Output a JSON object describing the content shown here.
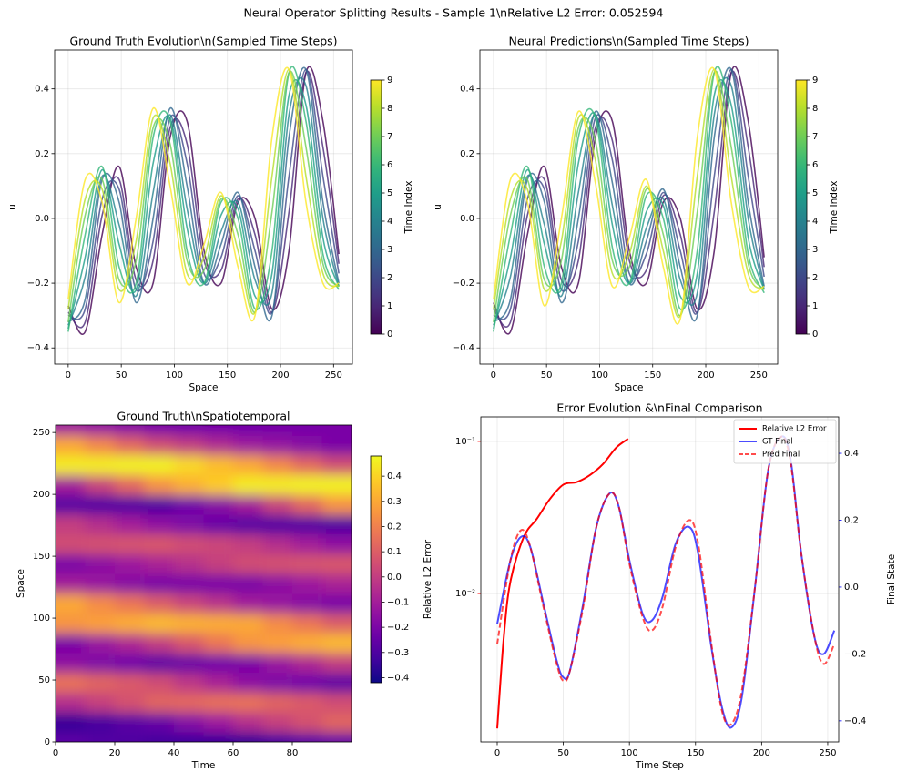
{
  "title": "Neural Operator Splitting Results - Sample 1\\nRelative L2 Error: 0.052594",
  "chart_data": [
    {
      "type": "line",
      "title": "Ground Truth Evolution\\n(Sampled Time Steps)",
      "xlabel": "Space",
      "ylabel": "u",
      "x": [
        0,
        16,
        32,
        48,
        64,
        80,
        96,
        112,
        128,
        144,
        160,
        176,
        192,
        208,
        224,
        240,
        255
      ],
      "xlim": [
        -12.75,
        267.75
      ],
      "xticks": [
        0,
        50,
        100,
        150,
        200,
        250
      ],
      "ylim": [
        -0.45,
        0.52
      ],
      "yticks": [
        {
          "value": -0.4,
          "label": "−0.4"
        },
        {
          "value": -0.2,
          "label": "−0.2"
        },
        {
          "value": 0,
          "label": "0.0"
        },
        0.2,
        0.4
      ],
      "grid": true,
      "colormap": "viridis",
      "clim": [
        0,
        9
      ],
      "cticks": [
        0,
        1,
        2,
        3,
        4,
        5,
        6,
        7,
        8,
        9
      ],
      "clabel": "Time Index",
      "series": [
        {
          "color": "#440154",
          "values": [
            -0.27,
            -0.35,
            -0.05,
            0.16,
            -0.15,
            -0.2,
            0.25,
            0.3,
            -0.1,
            -0.2,
            0.05,
            0.0,
            -0.28,
            -0.1,
            0.45,
            0.3,
            -0.11
          ]
        },
        {
          "color": "#482878",
          "values": [
            -0.29,
            -0.32,
            0.01,
            0.12,
            -0.19,
            -0.13,
            0.28,
            0.23,
            -0.13,
            -0.16,
            0.06,
            -0.05,
            -0.29,
            0.02,
            0.45,
            0.22,
            -0.14
          ]
        },
        {
          "color": "#3e4989",
          "values": [
            -0.3,
            -0.28,
            0.06,
            0.09,
            -0.22,
            -0.07,
            0.31,
            0.17,
            -0.17,
            -0.12,
            0.07,
            -0.1,
            -0.29,
            0.13,
            0.46,
            0.13,
            -0.17
          ]
        },
        {
          "color": "#31688e",
          "values": [
            -0.32,
            -0.25,
            0.12,
            0.05,
            -0.26,
            0.0,
            0.34,
            0.1,
            -0.2,
            -0.08,
            0.08,
            -0.15,
            -0.3,
            0.25,
            0.46,
            0.05,
            -0.2
          ]
        },
        {
          "color": "#26828e",
          "values": [
            -0.33,
            -0.18,
            0.13,
            -0.02,
            -0.24,
            0.08,
            0.32,
            0.03,
            -0.2,
            -0.04,
            0.05,
            -0.19,
            -0.23,
            0.32,
            0.41,
            0.0,
            -0.21
          ]
        },
        {
          "color": "#1f9e89",
          "values": [
            -0.34,
            -0.12,
            0.15,
            -0.08,
            -0.22,
            0.17,
            0.31,
            -0.03,
            -0.2,
            0.01,
            0.03,
            -0.24,
            -0.17,
            0.38,
            0.35,
            -0.06,
            -0.21
          ]
        },
        {
          "color": "#35b779",
          "values": [
            -0.35,
            -0.05,
            0.16,
            -0.15,
            -0.2,
            0.25,
            0.3,
            -0.1,
            -0.2,
            0.05,
            0.0,
            -0.28,
            -0.1,
            0.45,
            0.3,
            -0.11,
            -0.22
          ]
        },
        {
          "color": "#6ece58",
          "values": [
            -0.32,
            0.01,
            0.12,
            -0.19,
            -0.13,
            0.28,
            0.23,
            -0.13,
            -0.16,
            0.06,
            -0.05,
            -0.29,
            0.02,
            0.45,
            0.22,
            -0.14,
            -0.21
          ]
        },
        {
          "color": "#b5de2b",
          "values": [
            -0.28,
            0.06,
            0.09,
            -0.22,
            -0.07,
            0.31,
            0.17,
            -0.17,
            -0.12,
            0.07,
            -0.1,
            -0.29,
            0.13,
            0.46,
            0.13,
            -0.17,
            -0.21
          ]
        },
        {
          "color": "#fde725",
          "values": [
            -0.25,
            0.12,
            0.05,
            -0.26,
            0.0,
            0.34,
            0.1,
            -0.2,
            -0.08,
            0.08,
            -0.15,
            -0.3,
            0.25,
            0.46,
            0.05,
            -0.2,
            -0.2
          ]
        }
      ]
    },
    {
      "type": "line",
      "title": "Neural Predictions\\n(Sampled Time Steps)",
      "xlabel": "Space",
      "ylabel": "u",
      "x": [
        0,
        16,
        32,
        48,
        64,
        80,
        96,
        112,
        128,
        144,
        160,
        176,
        192,
        208,
        224,
        240,
        255
      ],
      "xlim": [
        -12.75,
        267.75
      ],
      "xticks": [
        0,
        50,
        100,
        150,
        200,
        250
      ],
      "ylim": [
        -0.45,
        0.52
      ],
      "yticks": [
        {
          "value": -0.4,
          "label": "−0.4"
        },
        {
          "value": -0.2,
          "label": "−0.2"
        },
        {
          "value": 0,
          "label": "0.0"
        },
        0.2,
        0.4
      ],
      "grid": true,
      "colormap": "viridis",
      "clim": [
        0,
        9
      ],
      "cticks": [
        0,
        1,
        2,
        3,
        4,
        5,
        6,
        7,
        8,
        9
      ],
      "clabel": "Time Index",
      "series": [
        {
          "color": "#440154",
          "values": [
            -0.26,
            -0.35,
            -0.05,
            0.16,
            -0.15,
            -0.2,
            0.25,
            0.3,
            -0.1,
            -0.2,
            0.05,
            0.0,
            -0.28,
            -0.1,
            0.45,
            0.3,
            -0.12
          ]
        },
        {
          "color": "#482878",
          "values": [
            -0.28,
            -0.32,
            0.01,
            0.12,
            -0.19,
            -0.13,
            0.28,
            0.24,
            -0.13,
            -0.16,
            0.07,
            -0.05,
            -0.29,
            0.02,
            0.45,
            0.22,
            -0.15
          ]
        },
        {
          "color": "#3e4989",
          "values": [
            -0.3,
            -0.28,
            0.06,
            0.09,
            -0.22,
            -0.07,
            0.31,
            0.18,
            -0.17,
            -0.11,
            0.08,
            -0.1,
            -0.29,
            0.13,
            0.46,
            0.13,
            -0.18
          ]
        },
        {
          "color": "#31688e",
          "values": [
            -0.32,
            -0.25,
            0.12,
            0.05,
            -0.26,
            0.0,
            0.33,
            0.11,
            -0.2,
            -0.07,
            0.09,
            -0.15,
            -0.3,
            0.25,
            0.46,
            0.05,
            -0.21
          ]
        },
        {
          "color": "#26828e",
          "values": [
            -0.33,
            -0.18,
            0.13,
            -0.02,
            -0.24,
            0.08,
            0.32,
            0.04,
            -0.2,
            -0.03,
            0.06,
            -0.19,
            -0.23,
            0.32,
            0.41,
            0.0,
            -0.22
          ]
        },
        {
          "color": "#1f9e89",
          "values": [
            -0.34,
            -0.12,
            0.15,
            -0.08,
            -0.22,
            0.17,
            0.32,
            -0.02,
            -0.2,
            0.02,
            0.04,
            -0.24,
            -0.17,
            0.38,
            0.35,
            -0.06,
            -0.22
          ]
        },
        {
          "color": "#35b779",
          "values": [
            -0.35,
            -0.05,
            0.16,
            -0.15,
            -0.2,
            0.25,
            0.31,
            -0.09,
            -0.2,
            0.07,
            0.0,
            -0.28,
            -0.1,
            0.45,
            0.3,
            -0.11,
            -0.23
          ]
        },
        {
          "color": "#6ece58",
          "values": [
            -0.32,
            0.01,
            0.12,
            -0.19,
            -0.13,
            0.28,
            0.24,
            -0.13,
            -0.15,
            0.09,
            -0.05,
            -0.3,
            0.02,
            0.45,
            0.22,
            -0.14,
            -0.22
          ]
        },
        {
          "color": "#b5de2b",
          "values": [
            -0.28,
            0.06,
            0.09,
            -0.22,
            -0.07,
            0.31,
            0.18,
            -0.17,
            -0.11,
            0.1,
            -0.1,
            -0.3,
            0.13,
            0.46,
            0.13,
            -0.17,
            -0.22
          ]
        },
        {
          "color": "#fde725",
          "values": [
            -0.25,
            0.12,
            0.05,
            -0.27,
            0.0,
            0.33,
            0.11,
            -0.21,
            -0.06,
            0.12,
            -0.15,
            -0.31,
            0.25,
            0.46,
            0.05,
            -0.21,
            -0.21
          ]
        }
      ]
    },
    {
      "type": "heatmap",
      "title": "Ground Truth\\nSpatiotemporal",
      "xlabel": "Time",
      "ylabel": "Space",
      "x": [
        0,
        10,
        20,
        30,
        40,
        50,
        60,
        70,
        80,
        90
      ],
      "y": [
        0,
        16,
        32,
        48,
        64,
        80,
        96,
        112,
        128,
        144,
        160,
        176,
        192,
        208,
        224,
        240,
        255
      ],
      "z": [
        [
          -0.27,
          -0.29,
          -0.3,
          -0.32,
          -0.33,
          -0.34,
          -0.35,
          -0.32,
          -0.28,
          -0.25
        ],
        [
          -0.35,
          -0.32,
          -0.28,
          -0.25,
          -0.18,
          -0.12,
          -0.05,
          0.01,
          0.06,
          0.12
        ],
        [
          -0.05,
          0.01,
          0.06,
          0.12,
          0.13,
          0.15,
          0.16,
          0.12,
          0.09,
          0.05
        ],
        [
          0.16,
          0.12,
          0.09,
          0.05,
          -0.02,
          -0.08,
          -0.15,
          -0.19,
          -0.22,
          -0.26
        ],
        [
          -0.15,
          -0.19,
          -0.22,
          -0.26,
          -0.24,
          -0.22,
          -0.2,
          -0.13,
          -0.07,
          0.0
        ],
        [
          -0.2,
          -0.13,
          -0.07,
          0.0,
          0.08,
          0.17,
          0.25,
          0.28,
          0.31,
          0.34
        ],
        [
          0.25,
          0.28,
          0.31,
          0.34,
          0.32,
          0.31,
          0.3,
          0.23,
          0.17,
          0.1
        ],
        [
          0.3,
          0.23,
          0.17,
          0.1,
          0.03,
          -0.03,
          -0.1,
          -0.13,
          -0.17,
          -0.2
        ],
        [
          -0.1,
          -0.13,
          -0.17,
          -0.2,
          -0.2,
          -0.2,
          -0.2,
          -0.16,
          -0.12,
          -0.08
        ],
        [
          -0.2,
          -0.16,
          -0.12,
          -0.08,
          -0.04,
          0.01,
          0.05,
          0.06,
          0.07,
          0.08
        ],
        [
          0.05,
          0.06,
          0.07,
          0.08,
          0.05,
          0.03,
          0.0,
          -0.05,
          -0.1,
          -0.15
        ],
        [
          0.0,
          -0.05,
          -0.1,
          -0.15,
          -0.19,
          -0.24,
          -0.28,
          -0.29,
          -0.29,
          -0.3
        ],
        [
          -0.28,
          -0.29,
          -0.29,
          -0.3,
          -0.23,
          -0.17,
          -0.1,
          0.02,
          0.13,
          0.25
        ],
        [
          -0.1,
          0.02,
          0.13,
          0.25,
          0.32,
          0.38,
          0.45,
          0.45,
          0.46,
          0.46
        ],
        [
          0.45,
          0.45,
          0.46,
          0.46,
          0.41,
          0.35,
          0.3,
          0.22,
          0.13,
          0.05
        ],
        [
          0.3,
          0.22,
          0.13,
          0.05,
          0.0,
          -0.06,
          -0.11,
          -0.14,
          -0.17,
          -0.2
        ],
        [
          -0.11,
          -0.14,
          -0.17,
          -0.2,
          -0.21,
          -0.21,
          -0.22,
          -0.21,
          -0.21,
          -0.2
        ]
      ],
      "xlim": [
        0,
        100
      ],
      "xticks": [
        0,
        20,
        40,
        60,
        80
      ],
      "ylim": [
        0,
        256
      ],
      "yticks": [
        0,
        50,
        100,
        150,
        200,
        250
      ],
      "colormap": "plasma",
      "clim": [
        -0.42,
        0.48
      ],
      "cticks": [
        {
          "value": -0.4,
          "label": "−0.4"
        },
        {
          "value": -0.3,
          "label": "−0.3"
        },
        {
          "value": -0.2,
          "label": "−0.2"
        },
        {
          "value": -0.1,
          "label": "−0.1"
        },
        {
          "value": 0,
          "label": "0.0"
        },
        0.1,
        0.2,
        0.3,
        0.4
      ]
    },
    {
      "type": "dual_line",
      "title": "Error Evolution &\\nFinal Comparison",
      "xlabel": "Time Step",
      "ylabel": "Relative L2 Error",
      "y2label": "Final State",
      "xlim": [
        -12.4,
        258.3
      ],
      "xticks": [
        0,
        50,
        100,
        150,
        200,
        250
      ],
      "ylog": true,
      "ylim": [
        0.00106,
        0.145
      ],
      "yticks": [
        {
          "value": 0.01,
          "label": "10⁻²"
        },
        {
          "value": 0.1,
          "label": "10⁻¹"
        }
      ],
      "y2lim": [
        -0.463,
        0.509
      ],
      "y2ticks": [
        {
          "value": -0.4,
          "label": "−0.4"
        },
        {
          "value": -0.2,
          "label": "−0.2"
        },
        {
          "value": 0,
          "label": "0.0"
        },
        0.2,
        0.4
      ],
      "ycolor": "#ff0000",
      "y2color": "#0000ff",
      "grid": true,
      "legend": "upper right",
      "series": [
        {
          "name": "Relative L2 Error",
          "color": "#ff0000",
          "axis": "y",
          "x": [
            0,
            5,
            10,
            20,
            30,
            40,
            50,
            60,
            70,
            80,
            90,
            99
          ],
          "values": [
            0.0013,
            0.0052,
            0.012,
            0.0235,
            0.031,
            0.042,
            0.052,
            0.054,
            0.06,
            0.071,
            0.091,
            0.104
          ]
        },
        {
          "name": "GT Final",
          "color": "#0000ff",
          "axis": "y2",
          "alpha": 0.7,
          "x": [
            0,
            10,
            18,
            25,
            35,
            45,
            50,
            55,
            65,
            75,
            85,
            92,
            100,
            110,
            117,
            125,
            135,
            145,
            152,
            162,
            170,
            177,
            185,
            195,
            205,
            215,
            222,
            230,
            240,
            247,
            255
          ],
          "values": [
            -0.11,
            0.08,
            0.15,
            0.12,
            -0.05,
            -0.22,
            -0.27,
            -0.25,
            -0.05,
            0.18,
            0.28,
            0.24,
            0.08,
            -0.08,
            -0.1,
            -0.03,
            0.13,
            0.18,
            0.1,
            -0.18,
            -0.36,
            -0.42,
            -0.33,
            0.0,
            0.35,
            0.45,
            0.38,
            0.1,
            -0.15,
            -0.2,
            -0.13
          ]
        },
        {
          "name": "Pred Final",
          "color": "#ff0000",
          "axis": "y2",
          "alpha": 0.7,
          "linestyle": "dashed",
          "x": [
            0,
            10,
            18,
            25,
            35,
            45,
            50,
            55,
            65,
            75,
            85,
            92,
            100,
            110,
            117,
            125,
            135,
            145,
            152,
            162,
            170,
            177,
            185,
            195,
            205,
            215,
            222,
            230,
            240,
            247,
            255
          ],
          "values": [
            -0.17,
            0.08,
            0.17,
            0.12,
            -0.06,
            -0.23,
            -0.28,
            -0.25,
            -0.06,
            0.18,
            0.28,
            0.24,
            0.07,
            -0.09,
            -0.13,
            -0.06,
            0.12,
            0.2,
            0.13,
            -0.17,
            -0.37,
            -0.41,
            -0.31,
            0.0,
            0.35,
            0.45,
            0.37,
            0.1,
            -0.15,
            -0.23,
            -0.17
          ]
        }
      ]
    }
  ]
}
